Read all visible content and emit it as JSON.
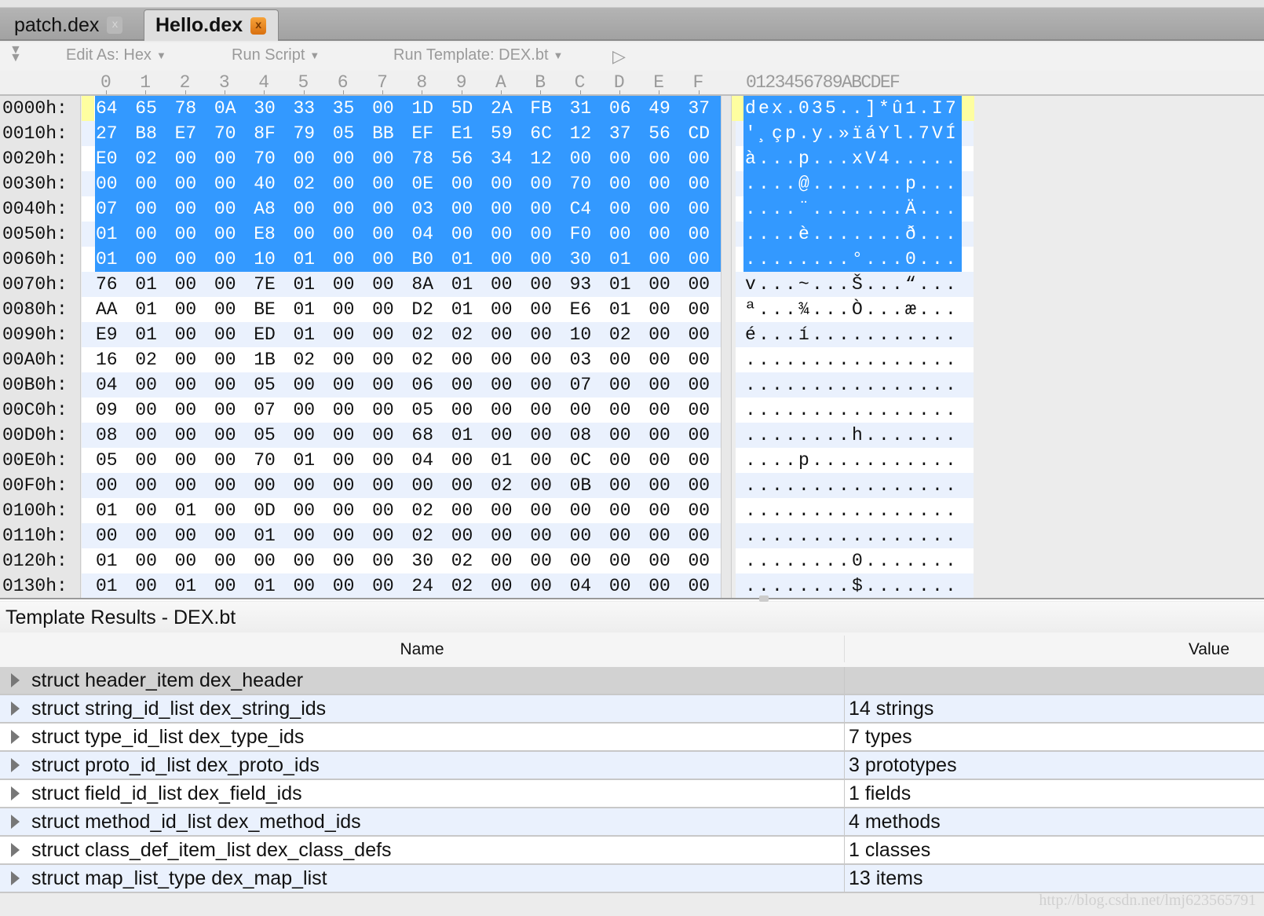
{
  "tabs": [
    {
      "label": "patch.dex",
      "active": false
    },
    {
      "label": "Hello.dex",
      "active": true
    }
  ],
  "tab_close_glyph": "x",
  "toolbar": {
    "edit_as": "Edit As: Hex",
    "run_script": "Run Script",
    "run_template": "Run Template: DEX.bt"
  },
  "column_headers": [
    "0",
    "1",
    "2",
    "3",
    "4",
    "5",
    "6",
    "7",
    "8",
    "9",
    "A",
    "B",
    "C",
    "D",
    "E",
    "F"
  ],
  "ascii_header": "0123456789ABCDEF",
  "colors": {
    "selection": "#3399ff",
    "alt_row": "#eaf1fd",
    "cursor": "#fefea0"
  },
  "selected_rows": 7,
  "hex_rows": [
    {
      "addr": "0000h:",
      "hex": "64 65 78 0A 30 33 35 00 1D 5D 2A FB 31 06 49 37",
      "ascii": "dex.035..]*û1.I7"
    },
    {
      "addr": "0010h:",
      "hex": "27 B8 E7 70 8F 79 05 BB EF E1 59 6C 12 37 56 CD",
      "ascii": "'¸çp.y.»ïáYl.7VÍ"
    },
    {
      "addr": "0020h:",
      "hex": "E0 02 00 00 70 00 00 00 78 56 34 12 00 00 00 00",
      "ascii": "à...p...xV4....."
    },
    {
      "addr": "0030h:",
      "hex": "00 00 00 00 40 02 00 00 0E 00 00 00 70 00 00 00",
      "ascii": "....@.......p..."
    },
    {
      "addr": "0040h:",
      "hex": "07 00 00 00 A8 00 00 00 03 00 00 00 C4 00 00 00",
      "ascii": "....¨.......Ä..."
    },
    {
      "addr": "0050h:",
      "hex": "01 00 00 00 E8 00 00 00 04 00 00 00 F0 00 00 00",
      "ascii": "....è.......ð..."
    },
    {
      "addr": "0060h:",
      "hex": "01 00 00 00 10 01 00 00 B0 01 00 00 30 01 00 00",
      "ascii": "........°...0..."
    },
    {
      "addr": "0070h:",
      "hex": "76 01 00 00 7E 01 00 00 8A 01 00 00 93 01 00 00",
      "ascii": "v...~...Š...“..."
    },
    {
      "addr": "0080h:",
      "hex": "AA 01 00 00 BE 01 00 00 D2 01 00 00 E6 01 00 00",
      "ascii": "ª...¾...Ò...æ..."
    },
    {
      "addr": "0090h:",
      "hex": "E9 01 00 00 ED 01 00 00 02 02 00 00 10 02 00 00",
      "ascii": "é...í..........."
    },
    {
      "addr": "00A0h:",
      "hex": "16 02 00 00 1B 02 00 00 02 00 00 00 03 00 00 00",
      "ascii": "................"
    },
    {
      "addr": "00B0h:",
      "hex": "04 00 00 00 05 00 00 00 06 00 00 00 07 00 00 00",
      "ascii": "................"
    },
    {
      "addr": "00C0h:",
      "hex": "09 00 00 00 07 00 00 00 05 00 00 00 00 00 00 00",
      "ascii": "................"
    },
    {
      "addr": "00D0h:",
      "hex": "08 00 00 00 05 00 00 00 68 01 00 00 08 00 00 00",
      "ascii": "........h......."
    },
    {
      "addr": "00E0h:",
      "hex": "05 00 00 00 70 01 00 00 04 00 01 00 0C 00 00 00",
      "ascii": "....p..........."
    },
    {
      "addr": "00F0h:",
      "hex": "00 00 00 00 00 00 00 00 00 00 02 00 0B 00 00 00",
      "ascii": "................"
    },
    {
      "addr": "0100h:",
      "hex": "01 00 01 00 0D 00 00 00 02 00 00 00 00 00 00 00",
      "ascii": "................"
    },
    {
      "addr": "0110h:",
      "hex": "00 00 00 00 01 00 00 00 02 00 00 00 00 00 00 00",
      "ascii": "................"
    },
    {
      "addr": "0120h:",
      "hex": "01 00 00 00 00 00 00 00 30 02 00 00 00 00 00 00",
      "ascii": "........0......."
    },
    {
      "addr": "0130h:",
      "hex": "01 00 01 00 01 00 00 00 24 02 00 00 04 00 00 00",
      "ascii": "........$......."
    }
  ],
  "template_results": {
    "title": "Template Results - DEX.bt",
    "col_name": "Name",
    "col_value": "Value",
    "rows": [
      {
        "name": "struct header_item dex_header",
        "value": ""
      },
      {
        "name": "struct string_id_list dex_string_ids",
        "value": "14 strings"
      },
      {
        "name": "struct type_id_list dex_type_ids",
        "value": "7 types"
      },
      {
        "name": "struct proto_id_list dex_proto_ids",
        "value": "3 prototypes"
      },
      {
        "name": "struct field_id_list dex_field_ids",
        "value": "1 fields"
      },
      {
        "name": "struct method_id_list dex_method_ids",
        "value": "4 methods"
      },
      {
        "name": "struct class_def_item_list dex_class_defs",
        "value": "1 classes"
      },
      {
        "name": "struct map_list_type dex_map_list",
        "value": "13 items"
      }
    ]
  },
  "watermark": "http://blog.csdn.net/lmj623565791"
}
